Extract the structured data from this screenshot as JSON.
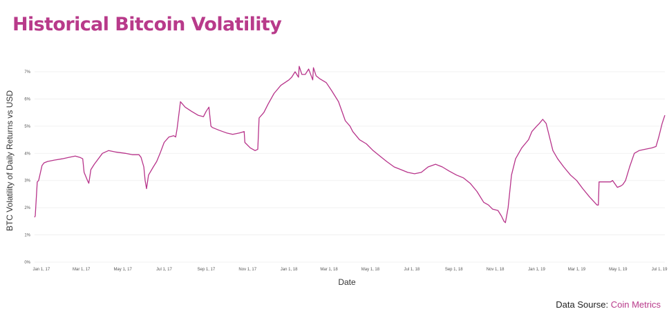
{
  "title": "Historical Bitcoin Volatility",
  "source": {
    "prefix": "Data Sourse:",
    "name": "Coin Metrics"
  },
  "colors": {
    "accent": "#b83a8a",
    "line": "#b7338a",
    "grid": "#eeeeee",
    "text": "#222222"
  },
  "chart_data": {
    "type": "line",
    "xlabel": "Date",
    "ylabel": "BTC Volatility of Daily Returns vs USD",
    "ylim": [
      0,
      7
    ],
    "yticks": [
      0,
      1,
      2,
      3,
      4,
      5,
      6,
      7
    ],
    "ytick_labels": [
      "0%",
      "1%",
      "2%",
      "3%",
      "4%",
      "5%",
      "6%",
      "7%"
    ],
    "xlim": [
      "2016-12-22",
      "2019-07-09"
    ],
    "xticks": [
      "2017-01-01",
      "2017-03-01",
      "2017-05-01",
      "2017-07-01",
      "2017-09-01",
      "2017-11-01",
      "2018-01-01",
      "2018-03-01",
      "2018-05-01",
      "2018-07-01",
      "2018-09-01",
      "2018-11-01",
      "2019-01-01",
      "2019-03-01",
      "2019-05-01",
      "2019-07-01"
    ],
    "xtick_labels": [
      "Jan 1, 17",
      "Mar 1, 17",
      "May 1, 17",
      "Jul 1, 17",
      "Sep 1, 17",
      "Nov 1, 17",
      "Jan 1, 18",
      "Mar 1, 18",
      "May 1, 18",
      "Jul 1, 18",
      "Sep 1, 18",
      "Nov 1, 18",
      "Jan 1, 19",
      "Mar 1, 19",
      "May 1, 19",
      "Jul 1, 19"
    ],
    "grid": true,
    "series": [
      {
        "x": [
          "2016-12-22",
          "2016-12-23",
          "2016-12-26",
          "2016-12-28",
          "2017-01-02",
          "2017-01-05",
          "2017-01-10",
          "2017-01-20",
          "2017-02-01",
          "2017-02-10",
          "2017-02-20",
          "2017-02-27",
          "2017-03-03",
          "2017-03-05",
          "2017-03-10",
          "2017-03-12",
          "2017-03-15",
          "2017-03-20",
          "2017-04-01",
          "2017-04-10",
          "2017-04-20",
          "2017-05-05",
          "2017-05-15",
          "2017-05-25",
          "2017-05-28",
          "2017-06-01",
          "2017-06-03",
          "2017-06-05",
          "2017-06-08",
          "2017-06-15",
          "2017-06-20",
          "2017-06-25",
          "2017-07-01",
          "2017-07-08",
          "2017-07-15",
          "2017-07-18",
          "2017-07-20",
          "2017-07-25",
          "2017-08-01",
          "2017-08-10",
          "2017-08-20",
          "2017-08-28",
          "2017-09-01",
          "2017-09-05",
          "2017-09-08",
          "2017-09-10",
          "2017-09-20",
          "2017-10-01",
          "2017-10-10",
          "2017-10-20",
          "2017-10-27",
          "2017-10-28",
          "2017-11-05",
          "2017-11-12",
          "2017-11-16",
          "2017-11-18",
          "2017-11-25",
          "2017-12-01",
          "2017-12-10",
          "2017-12-20",
          "2018-01-01",
          "2018-01-05",
          "2018-01-10",
          "2018-01-15",
          "2018-01-16",
          "2018-01-20",
          "2018-01-25",
          "2018-01-30",
          "2018-02-05",
          "2018-02-06",
          "2018-02-10",
          "2018-02-15",
          "2018-02-25",
          "2018-03-05",
          "2018-03-15",
          "2018-03-25",
          "2018-04-01",
          "2018-04-05",
          "2018-04-15",
          "2018-04-25",
          "2018-05-05",
          "2018-05-15",
          "2018-05-25",
          "2018-06-05",
          "2018-06-15",
          "2018-06-25",
          "2018-07-05",
          "2018-07-15",
          "2018-07-25",
          "2018-08-05",
          "2018-08-15",
          "2018-08-25",
          "2018-09-05",
          "2018-09-15",
          "2018-09-25",
          "2018-10-05",
          "2018-10-15",
          "2018-10-22",
          "2018-10-28",
          "2018-11-05",
          "2018-11-10",
          "2018-11-14",
          "2018-11-16",
          "2018-11-20",
          "2018-11-25",
          "2018-12-01",
          "2018-12-10",
          "2018-12-20",
          "2018-12-25",
          "2019-01-01",
          "2019-01-05",
          "2019-01-10",
          "2019-01-15",
          "2019-01-20",
          "2019-01-25",
          "2019-02-01",
          "2019-02-10",
          "2019-02-20",
          "2019-03-01",
          "2019-03-10",
          "2019-03-20",
          "2019-03-31",
          "2019-04-02",
          "2019-04-03",
          "2019-04-10",
          "2019-04-20",
          "2019-04-23",
          "2019-04-30",
          "2019-05-05",
          "2019-05-08",
          "2019-05-12",
          "2019-05-18",
          "2019-05-25",
          "2019-06-01",
          "2019-06-10",
          "2019-06-20",
          "2019-06-26",
          "2019-06-30",
          "2019-07-05",
          "2019-07-09"
        ],
        "y": [
          1.65,
          1.7,
          2.95,
          3.0,
          3.55,
          3.65,
          3.7,
          3.75,
          3.8,
          3.85,
          3.9,
          3.85,
          3.8,
          3.3,
          3.0,
          2.9,
          3.4,
          3.6,
          4.0,
          4.1,
          4.05,
          4.0,
          3.95,
          3.95,
          3.85,
          3.5,
          3.0,
          2.7,
          3.2,
          3.5,
          3.7,
          4.0,
          4.4,
          4.6,
          4.65,
          4.6,
          4.9,
          5.9,
          5.7,
          5.55,
          5.4,
          5.35,
          5.55,
          5.7,
          5.0,
          4.95,
          4.85,
          4.75,
          4.7,
          4.75,
          4.8,
          4.4,
          4.2,
          4.1,
          4.15,
          5.3,
          5.5,
          5.8,
          6.2,
          6.5,
          6.7,
          6.8,
          7.0,
          6.8,
          7.2,
          6.9,
          6.9,
          7.1,
          6.7,
          7.15,
          6.85,
          6.75,
          6.6,
          6.3,
          5.9,
          5.2,
          5.0,
          4.8,
          4.5,
          4.35,
          4.1,
          3.9,
          3.7,
          3.5,
          3.4,
          3.3,
          3.25,
          3.3,
          3.5,
          3.6,
          3.5,
          3.35,
          3.2,
          3.1,
          2.9,
          2.6,
          2.2,
          2.1,
          1.95,
          1.9,
          1.7,
          1.5,
          1.45,
          2.0,
          3.2,
          3.8,
          4.2,
          4.5,
          4.8,
          5.0,
          5.1,
          5.25,
          5.1,
          4.6,
          4.1,
          3.8,
          3.5,
          3.2,
          3.0,
          2.7,
          2.4,
          2.1,
          2.1,
          2.95,
          2.95,
          2.95,
          3.0,
          2.75,
          2.8,
          2.85,
          3.0,
          3.5,
          4.0,
          4.1,
          4.15,
          4.2,
          4.25,
          4.6,
          5.1,
          5.4
        ]
      }
    ]
  }
}
